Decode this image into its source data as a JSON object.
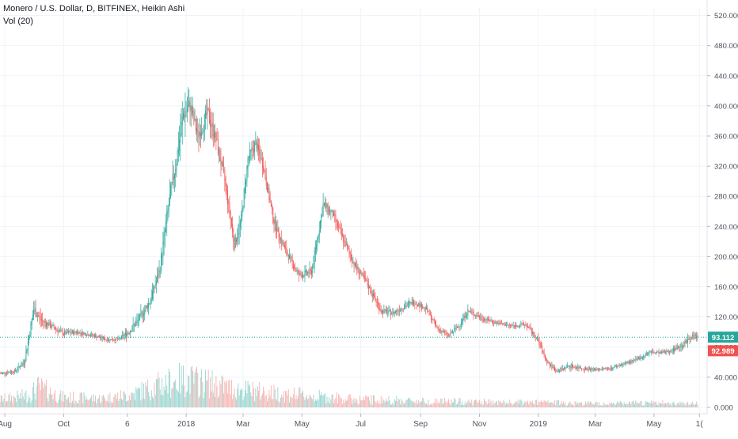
{
  "legend": {
    "title": "Monero / U.S. Dollar, D, BITFINEX, Heikin Ashi",
    "volume": "Vol (20)"
  },
  "colors": {
    "up": "#26a69a",
    "down": "#ef5350",
    "up_volume": "#80cbc4",
    "down_volume": "#f5a19f",
    "grid": "#f0f3fa",
    "axis_text": "#50535e",
    "price_line": "#26a69a"
  },
  "chart_data": {
    "type": "candlestick",
    "title": "Monero / U.S. Dollar, D, BITFINEX, Heikin Ashi",
    "subtitle": "Vol (20)",
    "x_tick_labels": [
      "Aug",
      "Oct",
      "6",
      "2018",
      "Mar",
      "May",
      "Jul",
      "Sep",
      "Nov",
      "2019",
      "Mar",
      "May",
      "1("
    ],
    "x_tick_days": [
      0,
      61,
      127,
      188,
      247,
      308,
      369,
      431,
      492,
      553,
      612,
      673,
      720
    ],
    "y_tick_labels": [
      "0.000",
      "40.000",
      "80.000",
      "120.000",
      "160.000",
      "200.000",
      "240.000",
      "280.000",
      "320.000",
      "360.000",
      "400.000",
      "440.000",
      "480.000",
      "520.000"
    ],
    "ylim": [
      0,
      530
    ],
    "xlim_days": [
      -5,
      728
    ],
    "last_price_label": "93.112",
    "last_price": 93.112,
    "last_close_label": "92.989",
    "last_close": 92.989,
    "price_anchors": [
      [
        -5,
        45,
        12
      ],
      [
        10,
        48,
        12
      ],
      [
        20,
        60,
        18
      ],
      [
        30,
        130,
        45
      ],
      [
        38,
        115,
        30
      ],
      [
        48,
        108,
        20
      ],
      [
        60,
        98,
        18
      ],
      [
        75,
        100,
        15
      ],
      [
        90,
        96,
        14
      ],
      [
        105,
        90,
        12
      ],
      [
        118,
        90,
        12
      ],
      [
        128,
        100,
        25
      ],
      [
        138,
        115,
        30
      ],
      [
        150,
        140,
        35
      ],
      [
        160,
        180,
        40
      ],
      [
        170,
        270,
        60
      ],
      [
        178,
        330,
        70
      ],
      [
        185,
        390,
        80
      ],
      [
        192,
        400,
        70
      ],
      [
        200,
        360,
        55
      ],
      [
        210,
        390,
        60
      ],
      [
        218,
        360,
        55
      ],
      [
        228,
        300,
        45
      ],
      [
        238,
        215,
        40
      ],
      [
        245,
        250,
        40
      ],
      [
        252,
        330,
        45
      ],
      [
        260,
        350,
        45
      ],
      [
        268,
        320,
        40
      ],
      [
        278,
        250,
        35
      ],
      [
        290,
        210,
        32
      ],
      [
        305,
        175,
        28
      ],
      [
        318,
        180,
        30
      ],
      [
        330,
        270,
        40
      ],
      [
        340,
        255,
        35
      ],
      [
        350,
        225,
        30
      ],
      [
        362,
        190,
        28
      ],
      [
        375,
        165,
        25
      ],
      [
        390,
        128,
        22
      ],
      [
        402,
        125,
        20
      ],
      [
        415,
        135,
        22
      ],
      [
        425,
        140,
        20
      ],
      [
        437,
        130,
        18
      ],
      [
        448,
        105,
        16
      ],
      [
        460,
        95,
        15
      ],
      [
        470,
        108,
        18
      ],
      [
        480,
        128,
        20
      ],
      [
        495,
        118,
        15
      ],
      [
        510,
        112,
        13
      ],
      [
        525,
        108,
        13
      ],
      [
        540,
        110,
        15
      ],
      [
        552,
        90,
        20
      ],
      [
        562,
        60,
        14
      ],
      [
        572,
        48,
        12
      ],
      [
        585,
        55,
        15
      ],
      [
        598,
        52,
        12
      ],
      [
        612,
        50,
        10
      ],
      [
        628,
        52,
        10
      ],
      [
        642,
        58,
        10
      ],
      [
        655,
        63,
        12
      ],
      [
        668,
        73,
        15
      ],
      [
        680,
        72,
        14
      ],
      [
        692,
        76,
        14
      ],
      [
        705,
        85,
        22
      ],
      [
        712,
        95,
        20
      ],
      [
        718,
        93,
        14
      ]
    ],
    "volume_anchors": [
      [
        -5,
        20
      ],
      [
        25,
        30
      ],
      [
        35,
        50
      ],
      [
        60,
        25
      ],
      [
        100,
        22
      ],
      [
        128,
        30
      ],
      [
        160,
        55
      ],
      [
        185,
        70
      ],
      [
        210,
        60
      ],
      [
        240,
        45
      ],
      [
        280,
        35
      ],
      [
        320,
        28
      ],
      [
        360,
        20
      ],
      [
        400,
        18
      ],
      [
        440,
        15
      ],
      [
        480,
        14
      ],
      [
        520,
        12
      ],
      [
        560,
        12
      ],
      [
        600,
        10
      ],
      [
        640,
        10
      ],
      [
        680,
        11
      ],
      [
        720,
        10
      ]
    ],
    "volume_units": "relative (0-100)",
    "grid": true
  }
}
